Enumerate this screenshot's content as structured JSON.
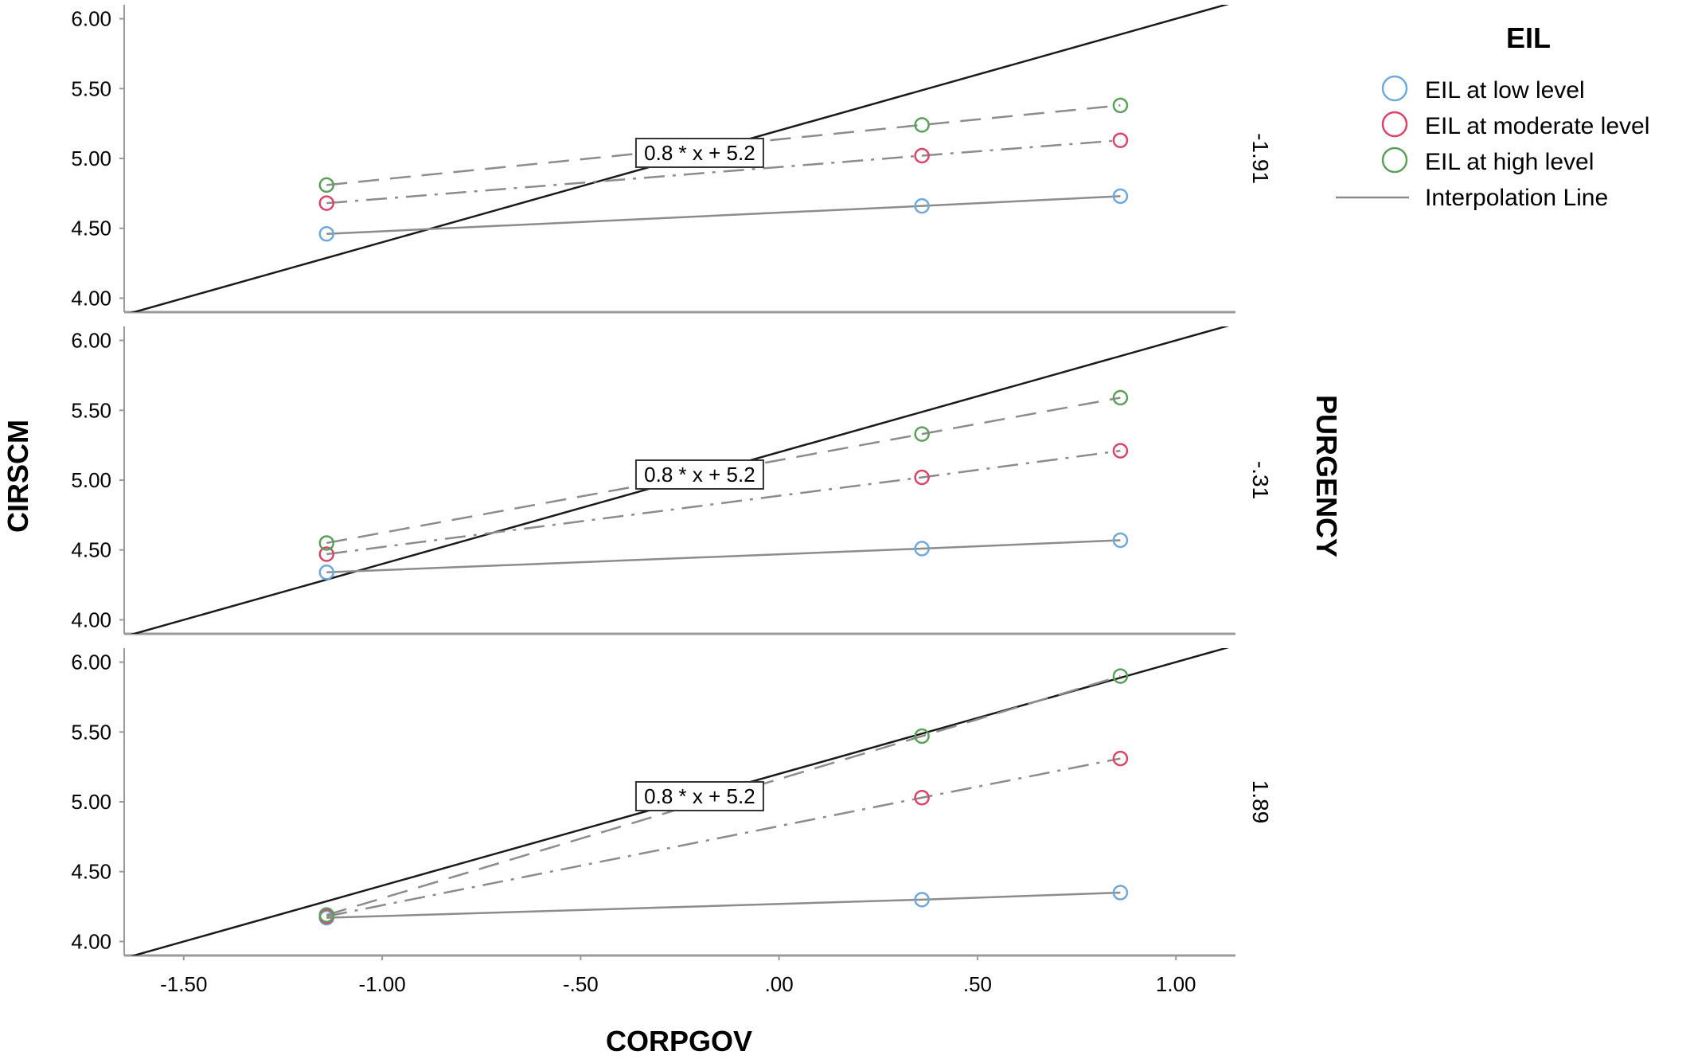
{
  "chart_data": {
    "type": "line",
    "subtype": "paneled scatter with interpolation lines (small multiples)",
    "xlabel": "CORPGOV",
    "ylabel": "CIRSCM",
    "panel_variable": "PURGENCY",
    "legend_title": "EIL",
    "legend_position": "top-right",
    "grid": false,
    "xlim": [
      -1.65,
      1.15
    ],
    "xticks": [
      -1.5,
      -1.0,
      -0.5,
      0.0,
      0.5,
      1.0
    ],
    "xtick_labels": [
      "-1.50",
      "-1.00",
      "-.50",
      ".00",
      ".50",
      "1.00"
    ],
    "ylim": [
      3.9,
      6.1
    ],
    "yticks": [
      4.0,
      4.5,
      5.0,
      5.5,
      6.0
    ],
    "ytick_labels": [
      "4.00",
      "4.50",
      "5.00",
      "5.50",
      "6.00"
    ],
    "x": [
      -1.14,
      0.36,
      0.86
    ],
    "reference_line": {
      "label": "0.8 * x + 5.2",
      "slope": 0.8,
      "intercept": 5.2,
      "label_x": -0.2
    },
    "series": [
      {
        "name": "EIL at low level",
        "color": "#6fa8dc",
        "dash": "solid"
      },
      {
        "name": "EIL at moderate level",
        "color": "#d94467",
        "dash": "dashdot"
      },
      {
        "name": "EIL at high level",
        "color": "#5aa05a",
        "dash": "dashed"
      }
    ],
    "interpolation_legend_label": "Interpolation Line",
    "panels": [
      {
        "label": "-1.91",
        "values": {
          "EIL at low level": [
            4.46,
            4.66,
            4.73
          ],
          "EIL at moderate level": [
            4.68,
            5.02,
            5.13
          ],
          "EIL at high level": [
            4.81,
            5.24,
            5.38
          ]
        }
      },
      {
        "label": "-.31",
        "values": {
          "EIL at low level": [
            4.34,
            4.51,
            4.57
          ],
          "EIL at moderate level": [
            4.47,
            5.02,
            5.21
          ],
          "EIL at high level": [
            4.55,
            5.33,
            5.59
          ]
        }
      },
      {
        "label": "1.89",
        "values": {
          "EIL at low level": [
            4.17,
            4.3,
            4.35
          ],
          "EIL at moderate level": [
            4.18,
            5.03,
            5.31
          ],
          "EIL at high level": [
            4.19,
            5.47,
            5.9
          ]
        }
      }
    ]
  }
}
